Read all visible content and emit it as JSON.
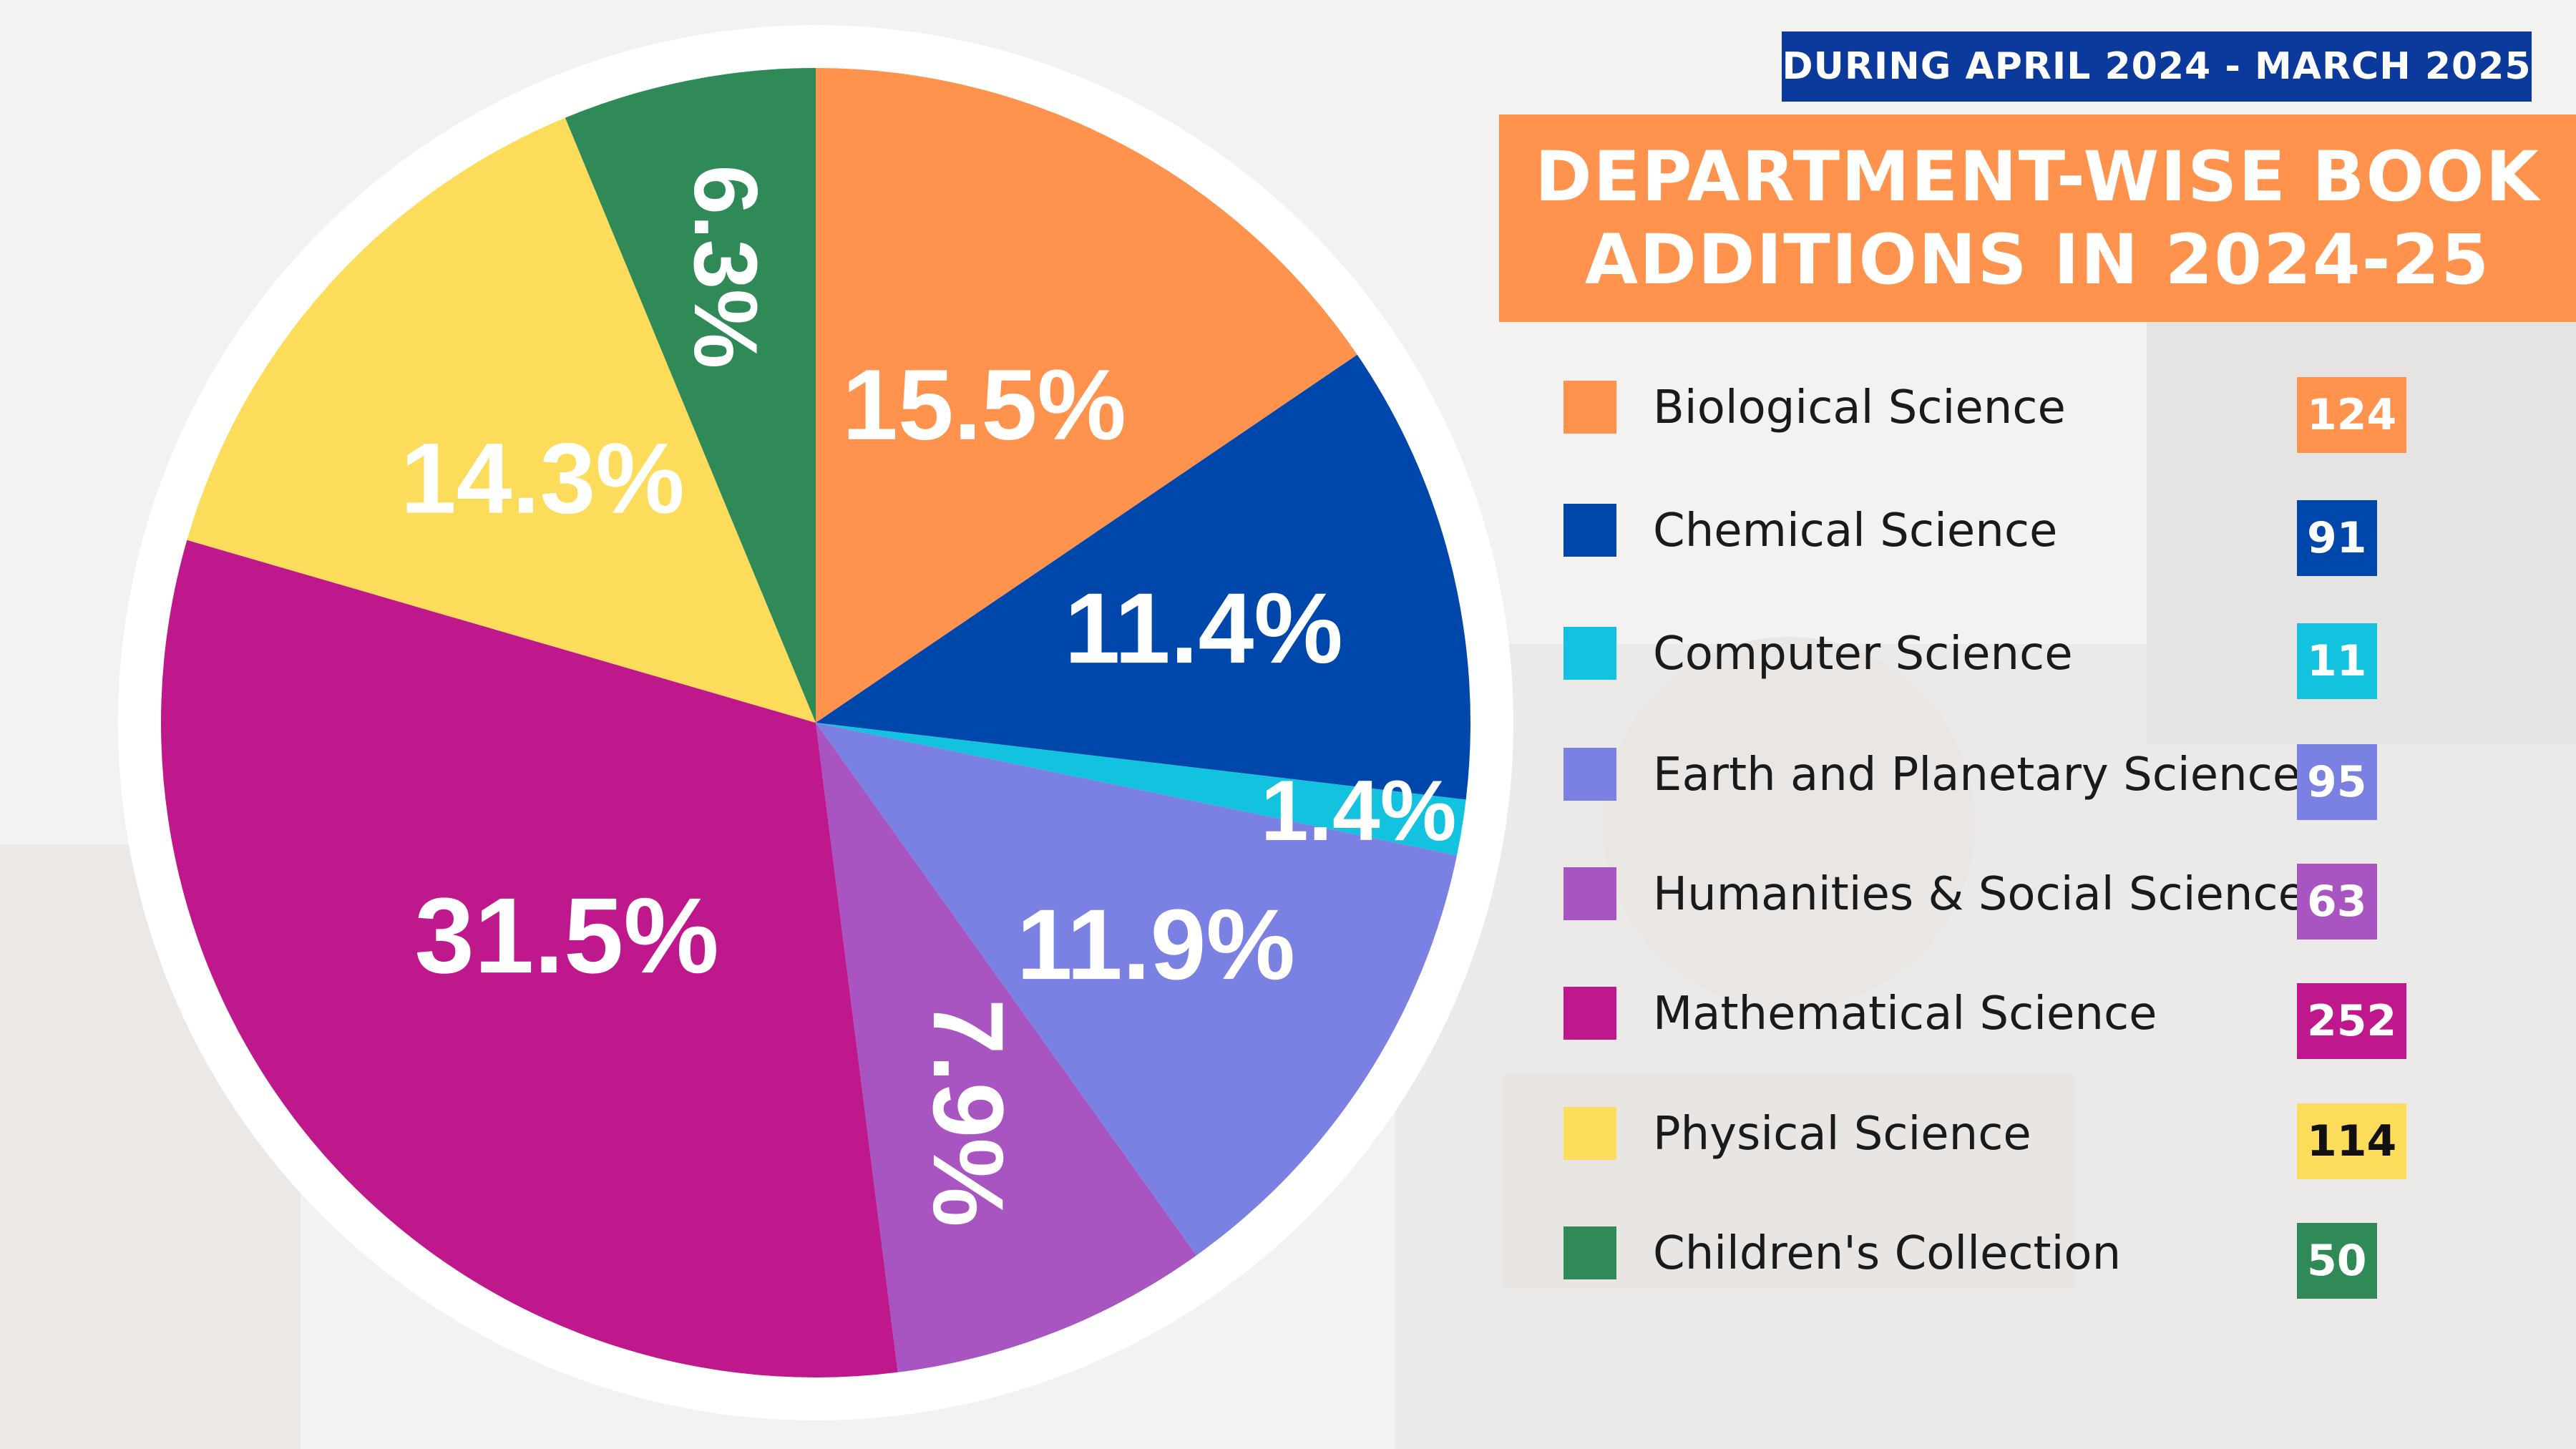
{
  "header": {
    "period": "DURING APRIL 2024 - MARCH 2025",
    "title_line1": "DEPARTMENT-WISE BOOK",
    "title_line2": "ADDITIONS IN 2024-25"
  },
  "chart_data": {
    "type": "pie",
    "title": "DEPARTMENT-WISE BOOK ADDITIONS IN 2024-25",
    "subtitle": "DURING APRIL 2024 - MARCH 2025",
    "legend_position": "right",
    "slices": [
      {
        "name": "Biological Science",
        "value": 124,
        "percent_label": "15.5%",
        "color": "#ff934d"
      },
      {
        "name": "Chemical Science",
        "value": 91,
        "percent_label": "11.4%",
        "color": "#0047ab"
      },
      {
        "name": "Computer Science",
        "value": 11,
        "percent_label": "1.4%",
        "color": "#13c2df"
      },
      {
        "name": "Earth and Planetary Science",
        "value": 95,
        "percent_label": "11.9%",
        "color": "#7b80e3"
      },
      {
        "name": "Humanities & Social Science",
        "value": 63,
        "percent_label": "7.9%",
        "color": "#a855c2"
      },
      {
        "name": "Mathematical Science",
        "value": 252,
        "percent_label": "31.5%",
        "color": "#bf178c"
      },
      {
        "name": "Physical Science",
        "value": 114,
        "percent_label": "14.3%",
        "color": "#fcdc5a"
      },
      {
        "name": "Children's Collection",
        "value": 50,
        "percent_label": "6.3%",
        "color": "#2f8a57"
      }
    ]
  },
  "legend": {
    "items": [
      {
        "label": "Biological Science",
        "value": "124",
        "color": "#ff934d",
        "text_color": "#ffffff"
      },
      {
        "label": "Chemical Science",
        "value": "91",
        "color": "#0047ab",
        "text_color": "#ffffff"
      },
      {
        "label": "Computer Science",
        "value": "11",
        "color": "#13c2df",
        "text_color": "#ffffff"
      },
      {
        "label": "Earth and Planetary Science",
        "value": "95",
        "color": "#7b80e3",
        "text_color": "#ffffff"
      },
      {
        "label": "Humanities & Social Science",
        "value": "63",
        "color": "#a855c2",
        "text_color": "#ffffff"
      },
      {
        "label": "Mathematical Science",
        "value": "252",
        "color": "#bf178c",
        "text_color": "#ffffff"
      },
      {
        "label": "Physical Science",
        "value": "114",
        "color": "#fcdc5a",
        "text_color": "#111111"
      },
      {
        "label": "Children's Collection",
        "value": "50",
        "color": "#2f8a57",
        "text_color": "#ffffff"
      }
    ]
  }
}
